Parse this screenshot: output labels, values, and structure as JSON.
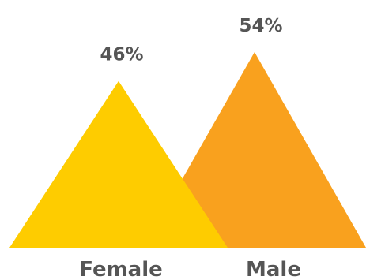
{
  "chart_data": {
    "type": "bar",
    "style": "triangle-pictogram",
    "categories": [
      "Female",
      "Male"
    ],
    "values": [
      46,
      54
    ],
    "value_labels": [
      "46%",
      "54%"
    ],
    "colors": [
      "#FECC00",
      "#F9A11E"
    ],
    "ylim": [
      0,
      54
    ],
    "title": "",
    "xlabel": "",
    "ylabel": "",
    "grid": false,
    "legend": "none"
  }
}
